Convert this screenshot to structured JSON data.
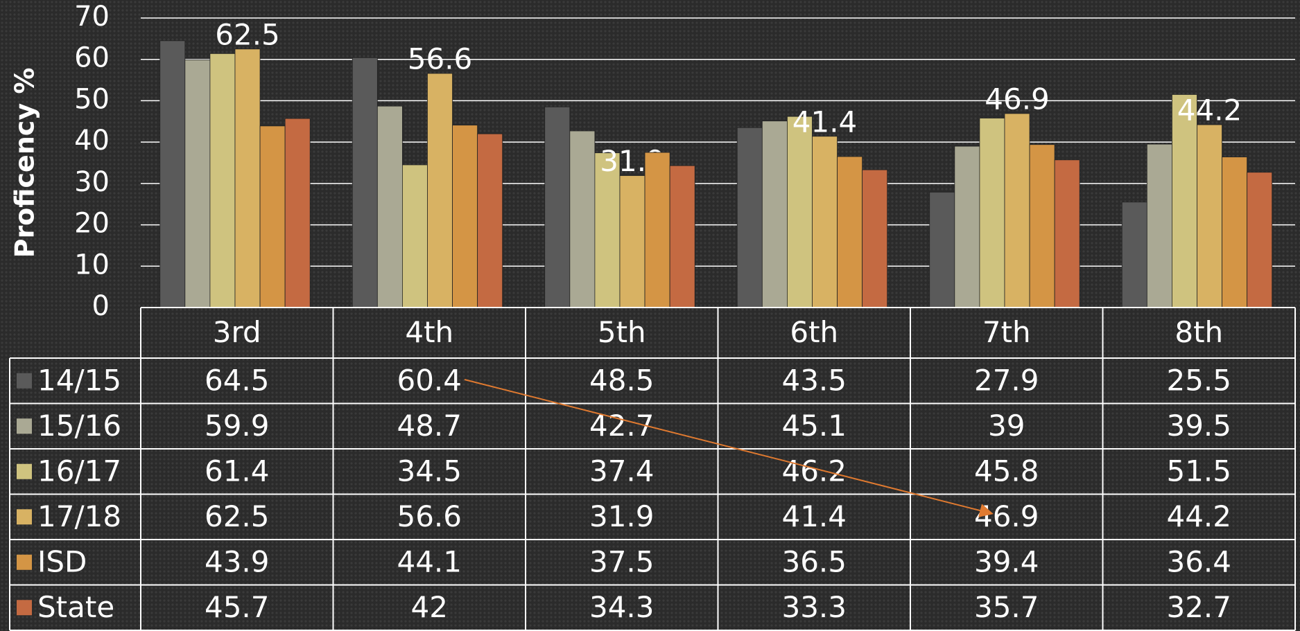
{
  "chart_data": {
    "type": "bar",
    "y_label": "Proficency %",
    "categories": [
      "3rd",
      "4th",
      "5th",
      "6th",
      "7th",
      "8th"
    ],
    "series": [
      {
        "name": "14/15",
        "color": "#5a5a5a",
        "values": [
          64.5,
          60.4,
          48.5,
          43.5,
          27.9,
          25.5
        ]
      },
      {
        "name": "15/16",
        "color": "#aaa994",
        "values": [
          59.9,
          48.7,
          42.7,
          45.1,
          39,
          39.5
        ]
      },
      {
        "name": "16/17",
        "color": "#cfc37f",
        "values": [
          61.4,
          34.5,
          37.4,
          46.2,
          45.8,
          51.5
        ]
      },
      {
        "name": "17/18",
        "color": "#d8b263",
        "values": [
          62.5,
          56.6,
          31.9,
          41.4,
          46.9,
          44.2
        ]
      },
      {
        "name": "ISD",
        "color": "#d49545",
        "values": [
          43.9,
          44.1,
          37.5,
          36.5,
          39.4,
          36.4
        ]
      },
      {
        "name": "State",
        "color": "#c46a42",
        "values": [
          45.7,
          42,
          34.3,
          33.3,
          35.7,
          32.7
        ]
      }
    ],
    "labeled_series": 3,
    "ylim": [
      0,
      70
    ],
    "yticks": [
      0,
      10,
      20,
      30,
      40,
      50,
      60,
      70
    ],
    "grid": true
  }
}
